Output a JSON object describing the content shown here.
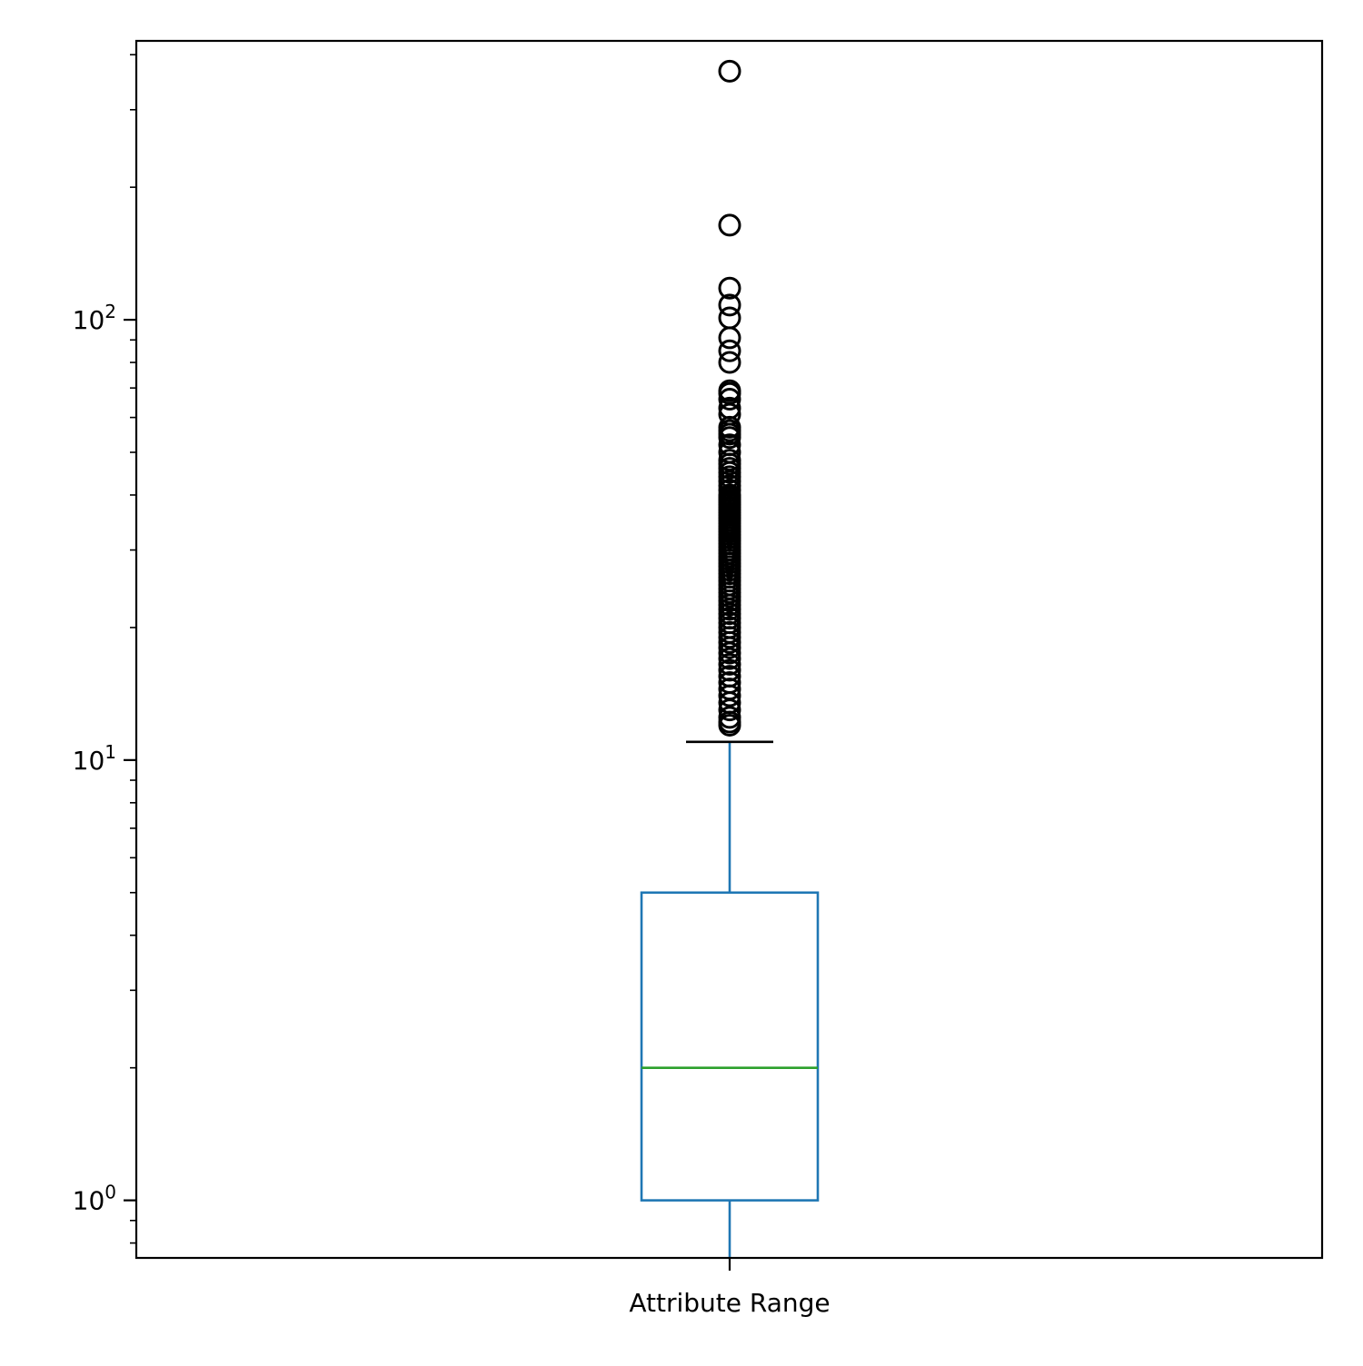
{
  "chart_data": {
    "type": "box",
    "category": "Attribute Range",
    "yscale": "log",
    "ylim": [
      0.74,
      430
    ],
    "yticks": [
      {
        "value": 1,
        "base": "10",
        "exp": "0"
      },
      {
        "value": 10,
        "base": "10",
        "exp": "1"
      },
      {
        "value": 100,
        "base": "10",
        "exp": "2"
      }
    ],
    "grid": false,
    "box": {
      "whisker_low": 0.74,
      "q1": 1,
      "median": 2,
      "q3": 5,
      "whisker_high": 11
    },
    "outliers": [
      12,
      12.2,
      12.5,
      13,
      13.5,
      14,
      14.5,
      15,
      15.5,
      16,
      16.5,
      17,
      17.5,
      18,
      18.5,
      19,
      19.5,
      20,
      20.5,
      21,
      21.5,
      22,
      22.5,
      23,
      23.5,
      24,
      24.5,
      25,
      25.5,
      26,
      26.5,
      27,
      27.5,
      28,
      28.5,
      29,
      29.5,
      30,
      30.5,
      31,
      31.5,
      32,
      32.5,
      33,
      33.5,
      34,
      34.5,
      35,
      35.5,
      36,
      36.5,
      37,
      37.5,
      38,
      38.5,
      39,
      39.5,
      40,
      41,
      42,
      43,
      44,
      45,
      46,
      47,
      48,
      50,
      52,
      54,
      55,
      56,
      57,
      61,
      63,
      66,
      68,
      69,
      80,
      85,
      91,
      101,
      108,
      118,
      164,
      367
    ],
    "colors": {
      "box": "#1f77b4",
      "median": "#2ca02c",
      "whisker_cap": "#000000",
      "outlier_edge": "#000000",
      "axes": "#000000"
    }
  }
}
